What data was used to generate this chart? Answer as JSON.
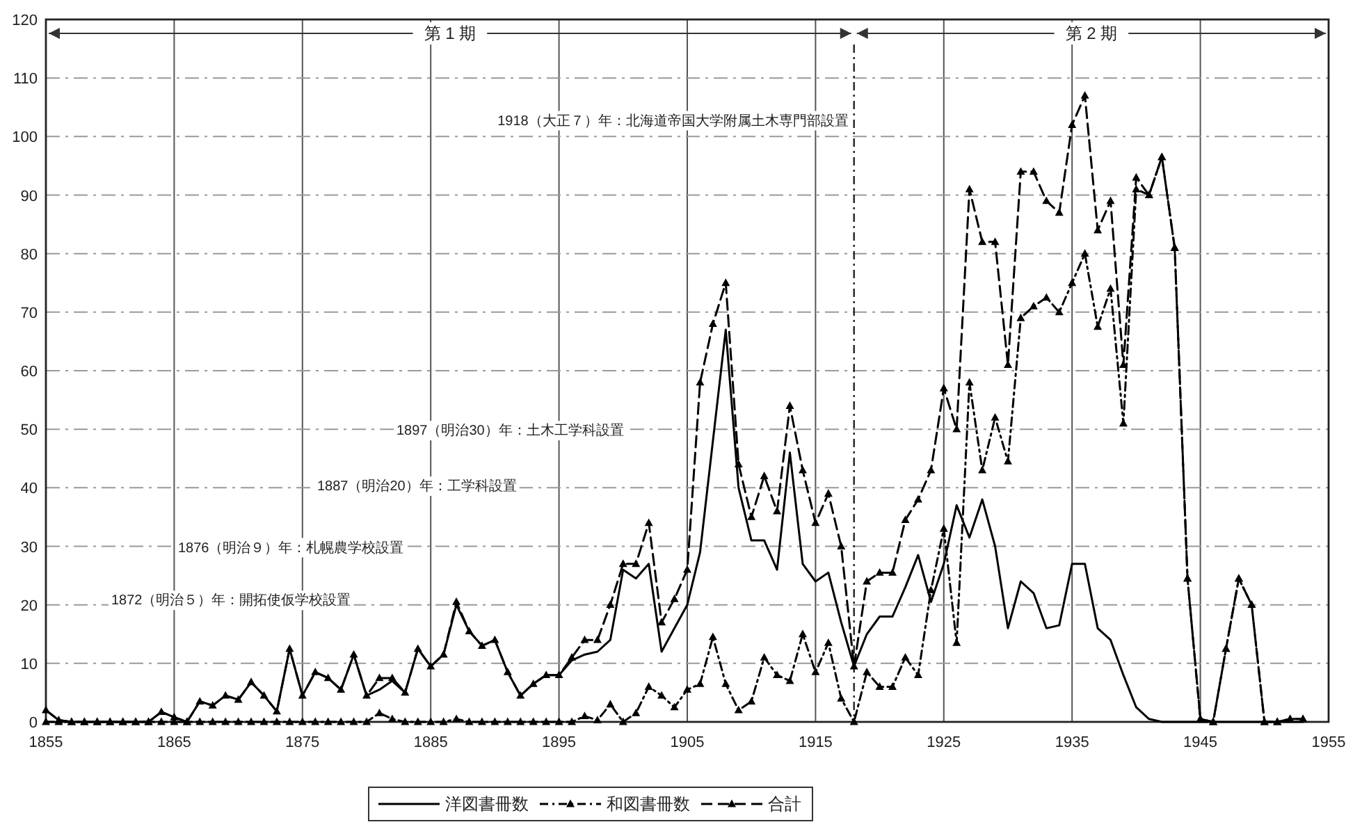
{
  "chart_data": {
    "type": "line",
    "x": [
      1855,
      1856,
      1857,
      1858,
      1859,
      1860,
      1861,
      1862,
      1863,
      1864,
      1865,
      1866,
      1867,
      1868,
      1869,
      1870,
      1871,
      1872,
      1873,
      1874,
      1875,
      1876,
      1877,
      1878,
      1879,
      1880,
      1881,
      1882,
      1883,
      1884,
      1885,
      1886,
      1887,
      1888,
      1889,
      1890,
      1891,
      1892,
      1893,
      1894,
      1895,
      1896,
      1897,
      1898,
      1899,
      1900,
      1901,
      1902,
      1903,
      1904,
      1905,
      1906,
      1907,
      1908,
      1909,
      1910,
      1911,
      1912,
      1913,
      1914,
      1915,
      1916,
      1917,
      1918,
      1919,
      1920,
      1921,
      1922,
      1923,
      1924,
      1925,
      1926,
      1927,
      1928,
      1929,
      1930,
      1931,
      1932,
      1933,
      1934,
      1935,
      1936,
      1937,
      1938,
      1939,
      1940,
      1941,
      1942,
      1943,
      1944,
      1945,
      1946,
      1947,
      1948,
      1949,
      1950,
      1951,
      1952,
      1953
    ],
    "series": [
      {
        "name": "洋図書冊数",
        "color": "#000000",
        "line_style": "solid",
        "marker": "none",
        "values": [
          2,
          0.3,
          0,
          0,
          0,
          0,
          0,
          0,
          0,
          1.7,
          0.8,
          0,
          3.5,
          2.8,
          4.5,
          3.8,
          6.8,
          4.5,
          1.8,
          12.5,
          4.5,
          8.5,
          7.5,
          5.5,
          11.5,
          4.5,
          5.5,
          7,
          5,
          12.5,
          9.5,
          11.5,
          20,
          15.5,
          13,
          14,
          8.5,
          4.5,
          6.5,
          8,
          8,
          10.5,
          11.5,
          12,
          14,
          26,
          24.5,
          27,
          12,
          16,
          20,
          29,
          48,
          67,
          40,
          31,
          31,
          26,
          46,
          27,
          24,
          25.5,
          17,
          9.5,
          15,
          18,
          18,
          23,
          28.5,
          20.5,
          27,
          37,
          31.5,
          38,
          30,
          16,
          24,
          22,
          16,
          16.5,
          27,
          27,
          16,
          14,
          8,
          2.5,
          0.5,
          0,
          0,
          0,
          0,
          0,
          0,
          0,
          0,
          0,
          0,
          0,
          0
        ]
      },
      {
        "name": "和図書冊数",
        "color": "#000000",
        "line_style": "dotted",
        "marker": "triangle",
        "values": [
          0,
          0,
          0,
          0,
          0,
          0,
          0,
          0,
          0,
          0,
          0,
          0,
          0,
          0,
          0,
          0,
          0,
          0,
          0,
          0,
          0,
          0,
          0,
          0,
          0,
          0,
          1.5,
          0.5,
          0,
          0,
          0,
          0,
          0.5,
          0,
          0,
          0,
          0,
          0,
          0,
          0,
          0,
          0,
          1,
          0.3,
          3,
          0,
          1.5,
          6,
          4.5,
          2.5,
          5.5,
          6.5,
          14.5,
          6.5,
          2,
          3.5,
          11,
          8,
          7,
          15,
          8.5,
          13.5,
          4,
          0,
          8.5,
          6,
          6,
          11,
          8,
          22.5,
          33,
          13.5,
          58,
          43,
          52,
          44.5,
          69,
          71,
          72.5,
          70,
          75,
          80,
          67.5,
          74,
          51,
          91,
          90,
          96.5,
          81,
          24.5,
          0.5,
          0,
          12.5,
          24.5,
          20,
          0,
          0,
          0.5,
          0.5
        ]
      },
      {
        "name": "合計",
        "color": "#000000",
        "line_style": "dashed",
        "marker": "triangle",
        "values": [
          2,
          0.3,
          0,
          0,
          0,
          0,
          0,
          0,
          0,
          1.7,
          0.8,
          0,
          3.5,
          2.8,
          4.5,
          3.8,
          6.8,
          4.5,
          1.8,
          12.5,
          4.5,
          8.5,
          7.5,
          5.5,
          11.5,
          4.5,
          7.5,
          7.5,
          5,
          12.5,
          9.5,
          11.5,
          20.5,
          15.5,
          13,
          14,
          8.5,
          4.5,
          6.5,
          8,
          8,
          11,
          14,
          14,
          20,
          27,
          27,
          34,
          17,
          21,
          26,
          58,
          68,
          75,
          44,
          35,
          42,
          36,
          54,
          43,
          34,
          39,
          30,
          9.5,
          24,
          25.5,
          25.5,
          34.5,
          38,
          43,
          57,
          50,
          91,
          82,
          82,
          61,
          94,
          94,
          89,
          87,
          102,
          107,
          84,
          89,
          61,
          93,
          90,
          96.5,
          81,
          24.5,
          0.5,
          0,
          12.5,
          24.5,
          20,
          0,
          0,
          0.5,
          0.5
        ]
      }
    ],
    "xlim": [
      1855,
      1955
    ],
    "ylim": [
      0,
      120
    ],
    "xticks": [
      1855,
      1865,
      1875,
      1885,
      1895,
      1905,
      1915,
      1925,
      1935,
      1945,
      1955
    ],
    "yticks": [
      0,
      10,
      20,
      30,
      40,
      50,
      60,
      70,
      80,
      90,
      100,
      110,
      120
    ],
    "grid": true,
    "legend": "bottom",
    "ref_lines": [
      {
        "axis": "x",
        "value": 1918,
        "label": "1918（大正７）年：北海道帝国大学附属土木専門部設置",
        "line_style": "dotted"
      }
    ],
    "annotations": [
      "第 1 期",
      "第 2 期",
      "1872（明治５）年：開拓使仮学校設置",
      "1876（明治９）年：札幌農学校設置",
      "1887（明治20）年：工学科設置",
      "1897（明治30）年：土木工学科設置"
    ]
  }
}
